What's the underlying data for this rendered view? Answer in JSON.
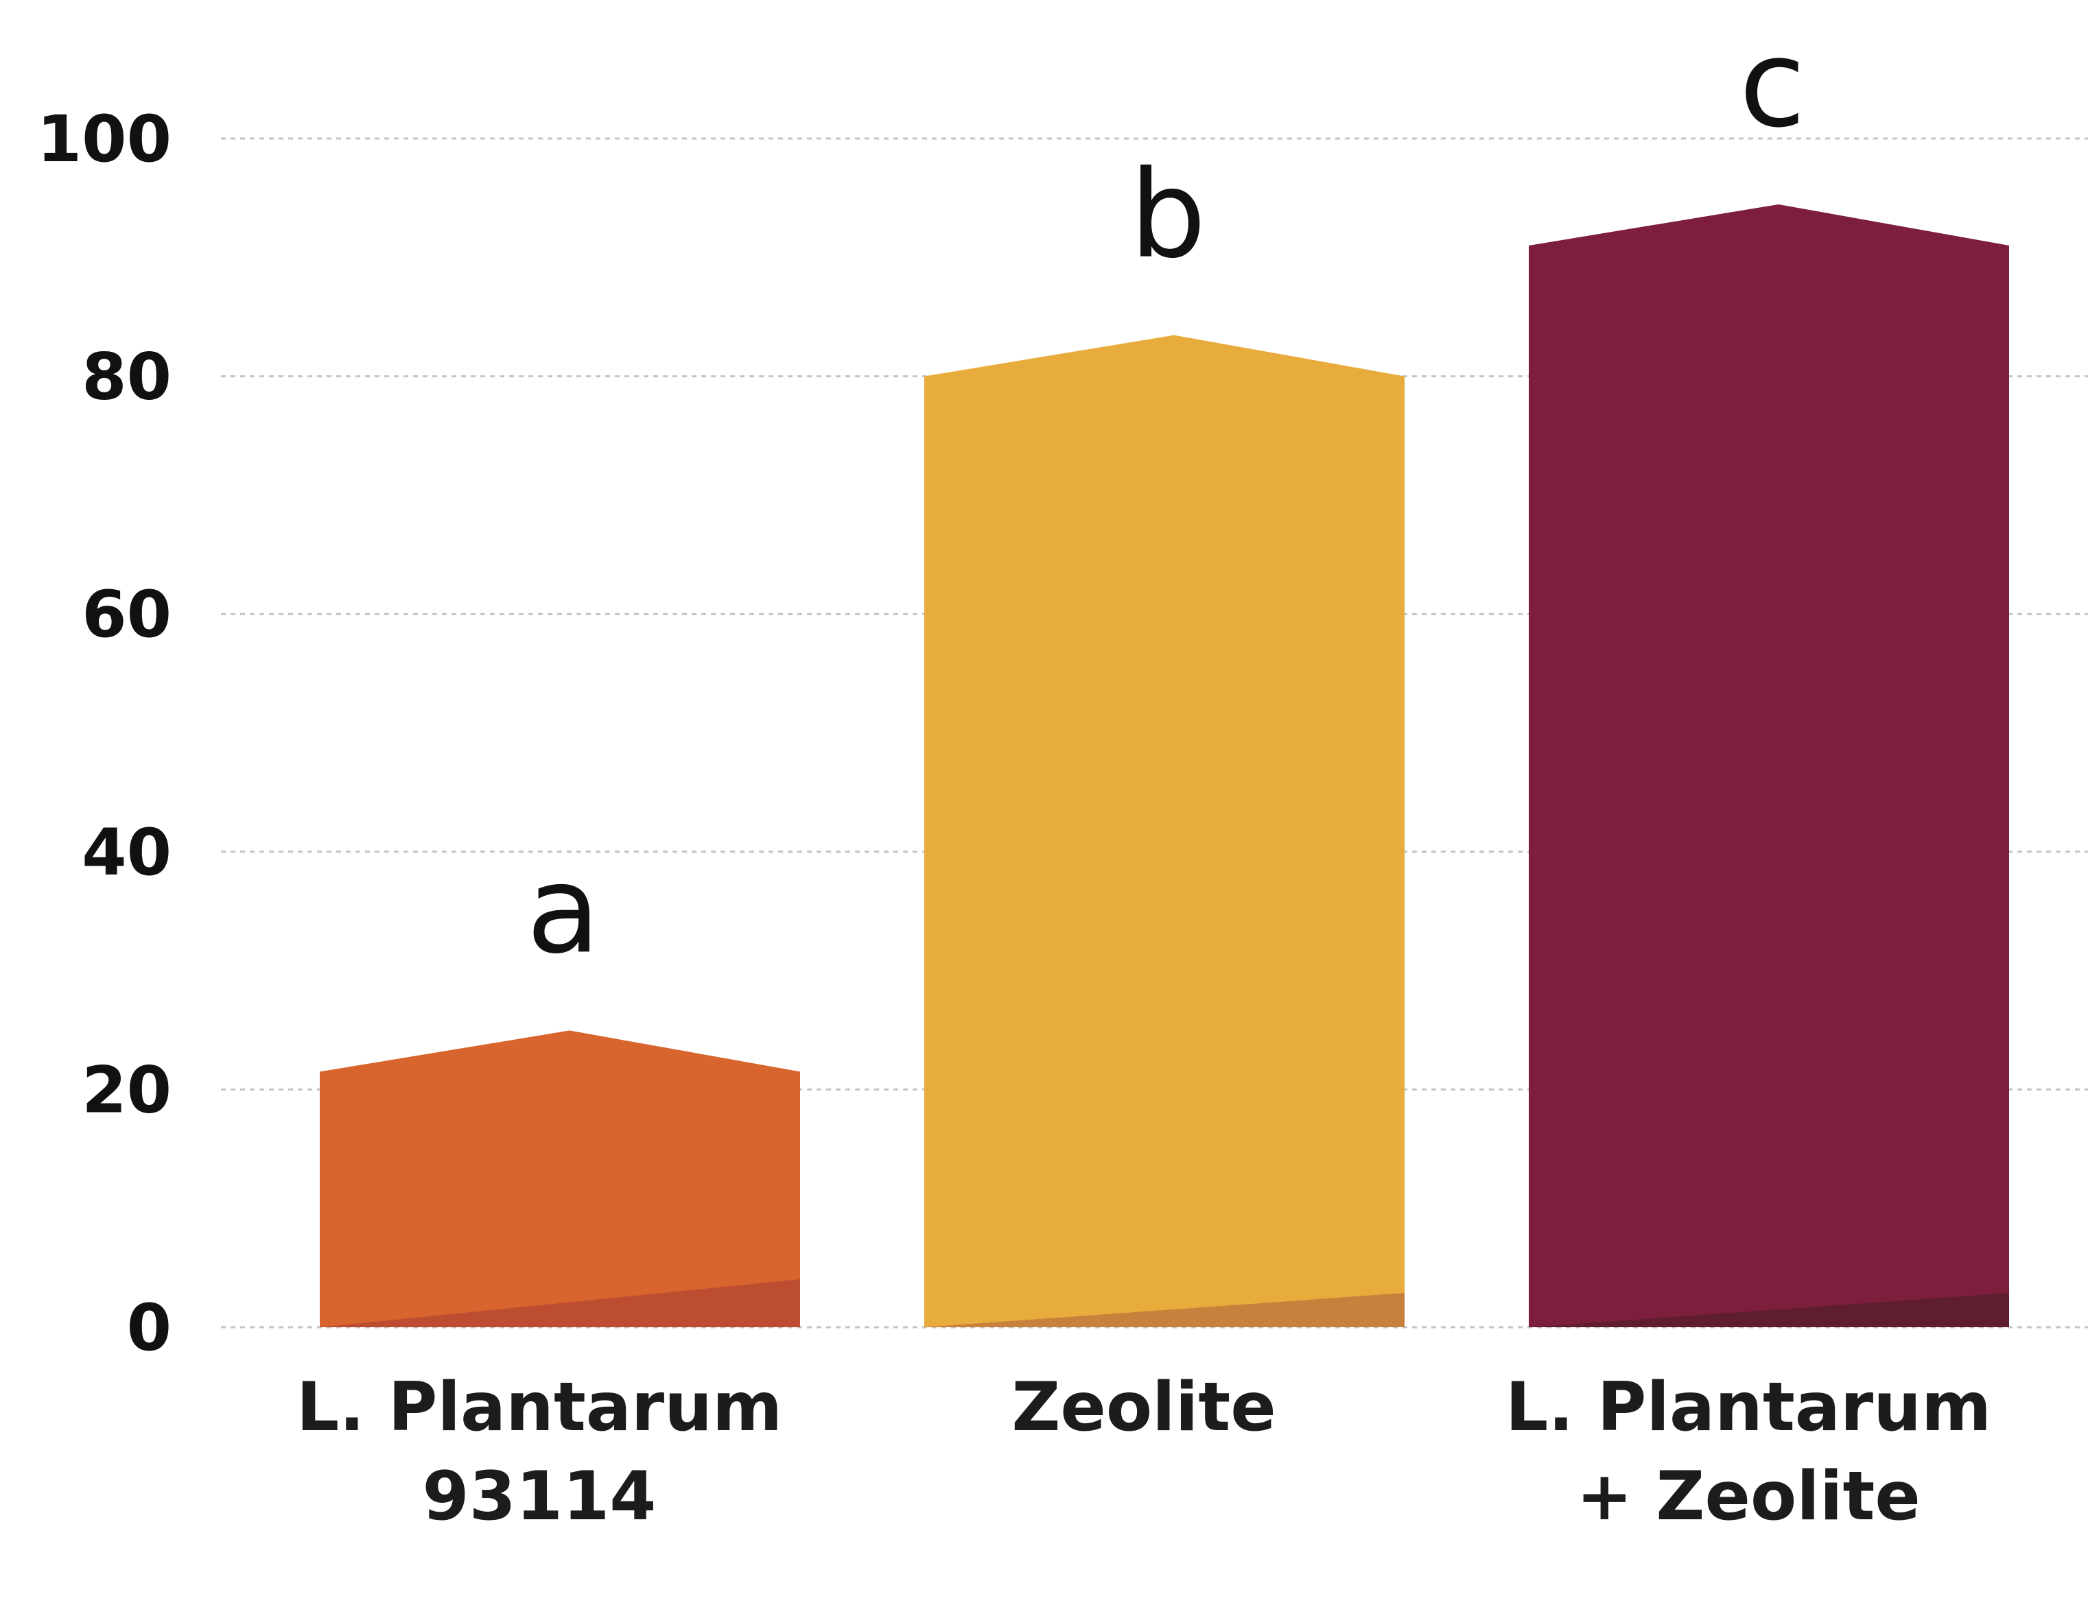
{
  "chart_data": {
    "type": "bar",
    "categories": [
      "L. Plantarum 93114",
      "Zeolite",
      "L. Plantarum + Zeolite"
    ],
    "category_lines": [
      [
        "L. Plantarum",
        "93114"
      ],
      [
        "Zeolite"
      ],
      [
        "L. Plantarum",
        "+ Zeolite"
      ]
    ],
    "values": [
      21.5,
      80,
      91
    ],
    "significance_labels": [
      "a",
      "b",
      "c"
    ],
    "colors": [
      "#D9652E",
      "#E8AC3C",
      "#7D1F3C"
    ],
    "base_shade_colors": [
      "#BC4D31",
      "#C8813D",
      "#5F1D30"
    ],
    "yticks": [
      0,
      20,
      40,
      60,
      80,
      100
    ],
    "ylim": [
      0,
      100
    ],
    "grid": true,
    "title": "",
    "xlabel": "",
    "ylabel": ""
  }
}
